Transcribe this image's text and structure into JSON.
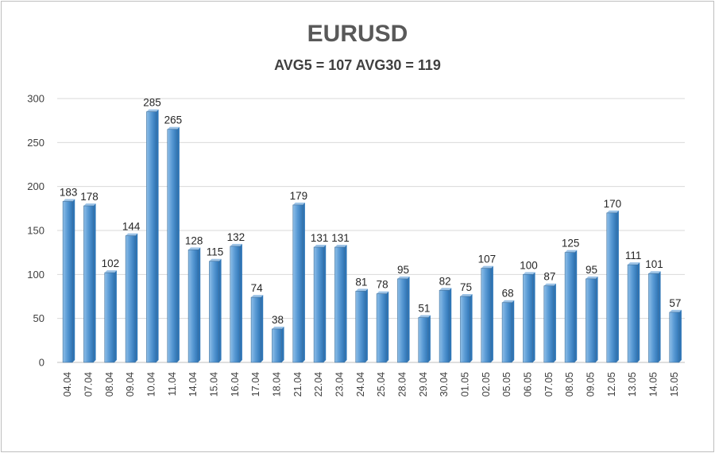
{
  "chart_data": {
    "type": "bar",
    "title": "EURUSD",
    "subtitle": "AVG5 = 107 AVG30 = 119",
    "categories": [
      "04.04",
      "07.04",
      "08.04",
      "09.04",
      "10.04",
      "11.04",
      "14.04",
      "15.04",
      "16.04",
      "17.04",
      "18.04",
      "21.04",
      "22.04",
      "23.04",
      "24.04",
      "25.04",
      "28.04",
      "29.04",
      "30.04",
      "01.05",
      "02.05",
      "05.05",
      "06.05",
      "07.05",
      "08.05",
      "09.05",
      "12.05",
      "13.05",
      "14.05",
      "15.05"
    ],
    "values": [
      183,
      178,
      102,
      144,
      285,
      265,
      128,
      115,
      132,
      74,
      38,
      179,
      131,
      131,
      81,
      78,
      95,
      51,
      82,
      75,
      107,
      68,
      100,
      87,
      125,
      95,
      170,
      111,
      101,
      57
    ],
    "ylim": [
      0,
      300
    ],
    "yticks": [
      "0",
      "50",
      "100",
      "150",
      "200",
      "250",
      "300"
    ],
    "grid": true,
    "bar_color": "#5b9bd5",
    "bar_dark": "#2e75b6"
  }
}
